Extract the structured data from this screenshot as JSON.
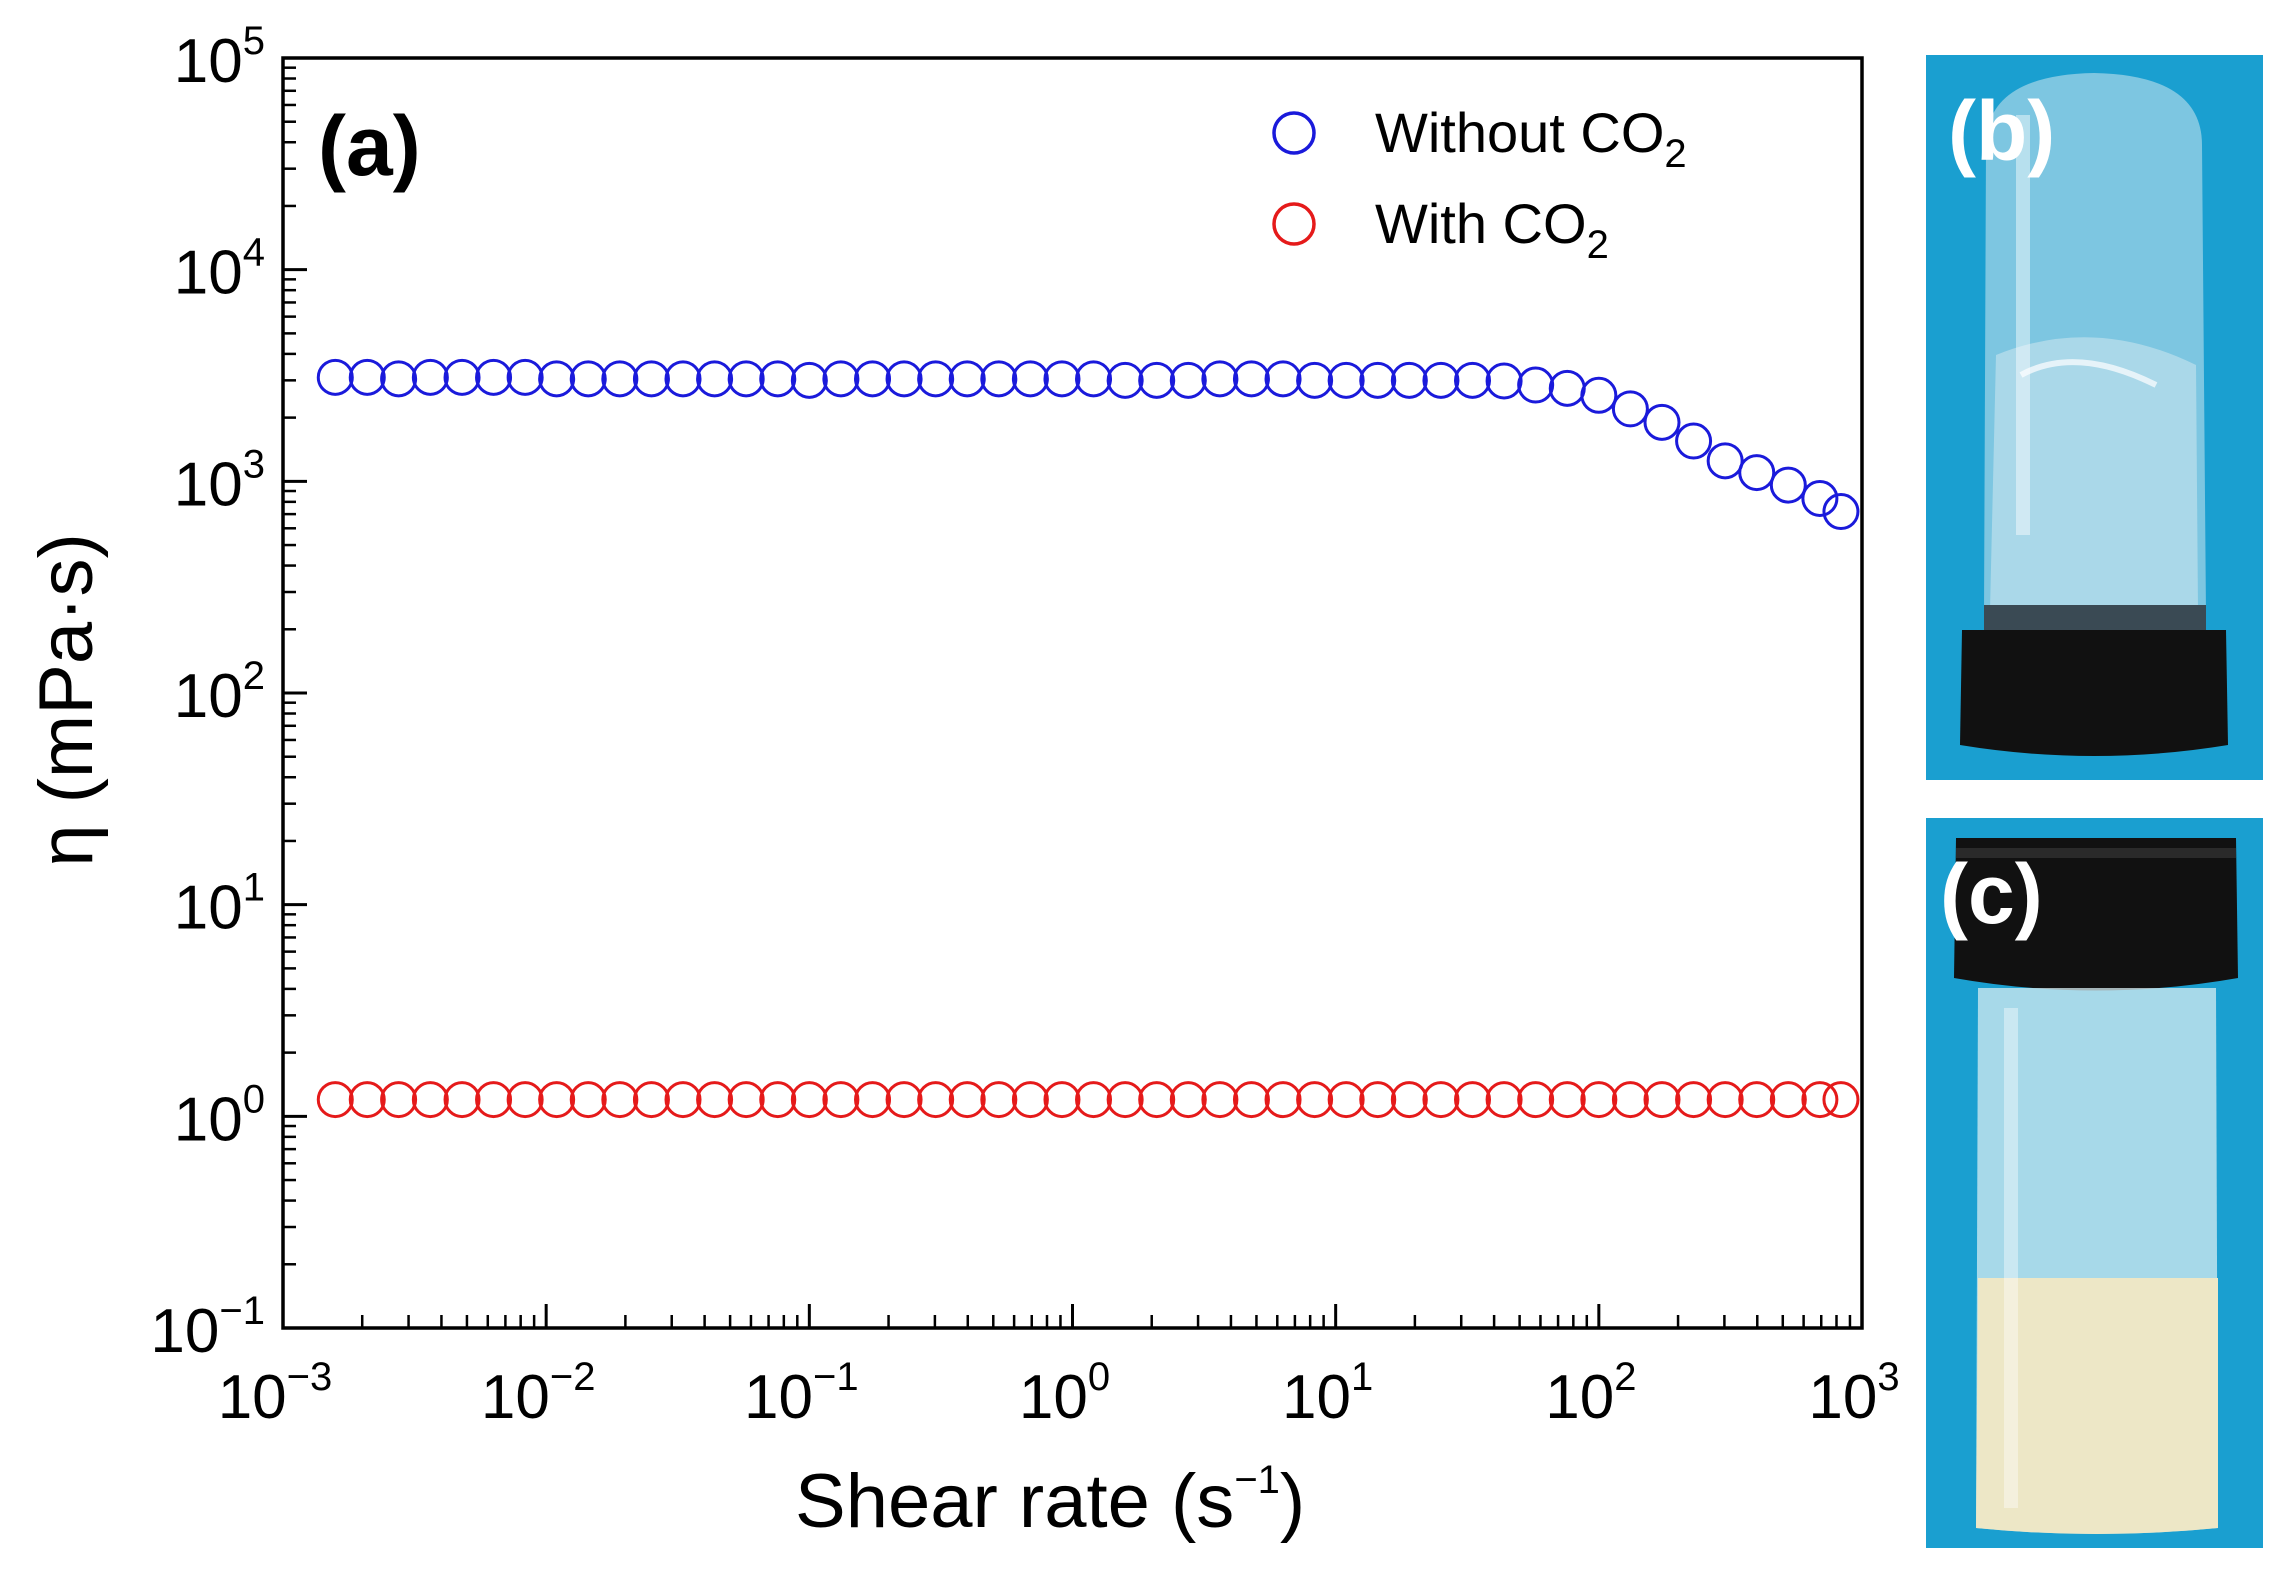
{
  "chart_data": {
    "type": "scatter",
    "panel_label": "(a)",
    "xlabel": "Shear rate (s",
    "xlabel_exp": "−1",
    "xlabel_close": ")",
    "ylabel": "η (mPa·s)",
    "xscale": "log",
    "yscale": "log",
    "xlim": [
      0.001,
      1000
    ],
    "ylim": [
      0.1,
      100000
    ],
    "x_ticks": [
      {
        "base": "10",
        "exp": "−3",
        "value": 0.001
      },
      {
        "base": "10",
        "exp": "−2",
        "value": 0.01
      },
      {
        "base": "10",
        "exp": "−1",
        "value": 0.1
      },
      {
        "base": "10",
        "exp": "0",
        "value": 1
      },
      {
        "base": "10",
        "exp": "1",
        "value": 10
      },
      {
        "base": "10",
        "exp": "2",
        "value": 100
      },
      {
        "base": "10",
        "exp": "3",
        "value": 1000
      }
    ],
    "y_ticks": [
      {
        "base": "10",
        "exp": "−1",
        "value": 0.1
      },
      {
        "base": "10",
        "exp": "0",
        "value": 1
      },
      {
        "base": "10",
        "exp": "1",
        "value": 10
      },
      {
        "base": "10",
        "exp": "2",
        "value": 100
      },
      {
        "base": "10",
        "exp": "3",
        "value": 1000
      },
      {
        "base": "10",
        "exp": "4",
        "value": 10000
      },
      {
        "base": "10",
        "exp": "5",
        "value": 100000
      }
    ],
    "legend_position": "top-right",
    "series": [
      {
        "name": "Without CO",
        "name_sub": "2",
        "color": "#1a1adb",
        "marker": "open-circle",
        "x": [
          0.00158,
          0.00209,
          0.00275,
          0.00363,
          0.00479,
          0.00631,
          0.00832,
          0.01096,
          0.01445,
          0.01905,
          0.02512,
          0.03311,
          0.04365,
          0.05754,
          0.07586,
          0.1,
          0.1318,
          0.1738,
          0.2291,
          0.302,
          0.3981,
          0.5248,
          0.6918,
          0.912,
          1.202,
          1.585,
          2.089,
          2.754,
          3.631,
          4.786,
          6.31,
          8.318,
          10.96,
          14.45,
          19.05,
          25.12,
          33.11,
          43.65,
          57.54,
          75.86,
          100,
          131.8,
          173.8,
          229.1,
          302,
          398.1,
          524.8,
          691.8,
          831.8
        ],
        "y": [
          3100,
          3100,
          3050,
          3100,
          3100,
          3100,
          3100,
          3050,
          3050,
          3050,
          3050,
          3050,
          3050,
          3050,
          3050,
          3000,
          3050,
          3050,
          3050,
          3050,
          3050,
          3050,
          3050,
          3050,
          3050,
          3000,
          3000,
          3000,
          3050,
          3050,
          3050,
          3000,
          3000,
          3000,
          3000,
          3000,
          3000,
          2980,
          2850,
          2750,
          2550,
          2200,
          1900,
          1550,
          1250,
          1100,
          960,
          830,
          720
        ]
      },
      {
        "name": "With CO",
        "name_sub": "2",
        "color": "#e51a1a",
        "marker": "open-circle",
        "x": [
          0.00158,
          0.00209,
          0.00275,
          0.00363,
          0.00479,
          0.00631,
          0.00832,
          0.01096,
          0.01445,
          0.01905,
          0.02512,
          0.03311,
          0.04365,
          0.05754,
          0.07586,
          0.1,
          0.1318,
          0.1738,
          0.2291,
          0.302,
          0.3981,
          0.5248,
          0.6918,
          0.912,
          1.202,
          1.585,
          2.089,
          2.754,
          3.631,
          4.786,
          6.31,
          8.318,
          10.96,
          14.45,
          19.05,
          25.12,
          33.11,
          43.65,
          57.54,
          75.86,
          100,
          131.8,
          173.8,
          229.1,
          302,
          398.1,
          524.8,
          691.8,
          831.8
        ],
        "y": [
          1.2,
          1.2,
          1.2,
          1.2,
          1.2,
          1.2,
          1.2,
          1.2,
          1.2,
          1.2,
          1.2,
          1.2,
          1.2,
          1.2,
          1.2,
          1.2,
          1.2,
          1.2,
          1.2,
          1.2,
          1.2,
          1.2,
          1.2,
          1.2,
          1.2,
          1.2,
          1.2,
          1.2,
          1.2,
          1.2,
          1.2,
          1.2,
          1.2,
          1.2,
          1.2,
          1.2,
          1.2,
          1.2,
          1.2,
          1.2,
          1.2,
          1.2,
          1.2,
          1.2,
          1.2,
          1.2,
          1.2,
          1.2,
          1.2
        ]
      }
    ]
  },
  "photos": {
    "b": {
      "label": "(b)",
      "colors": {
        "bg": "#1a9fd0",
        "cap": "#111111",
        "glass": "#cfe6ef"
      }
    },
    "c": {
      "label": "(c)",
      "colors": {
        "bg": "#1a9fd0",
        "cap": "#111111",
        "liquid": "#ede7c6",
        "glass": "#d7ecf2"
      }
    }
  }
}
